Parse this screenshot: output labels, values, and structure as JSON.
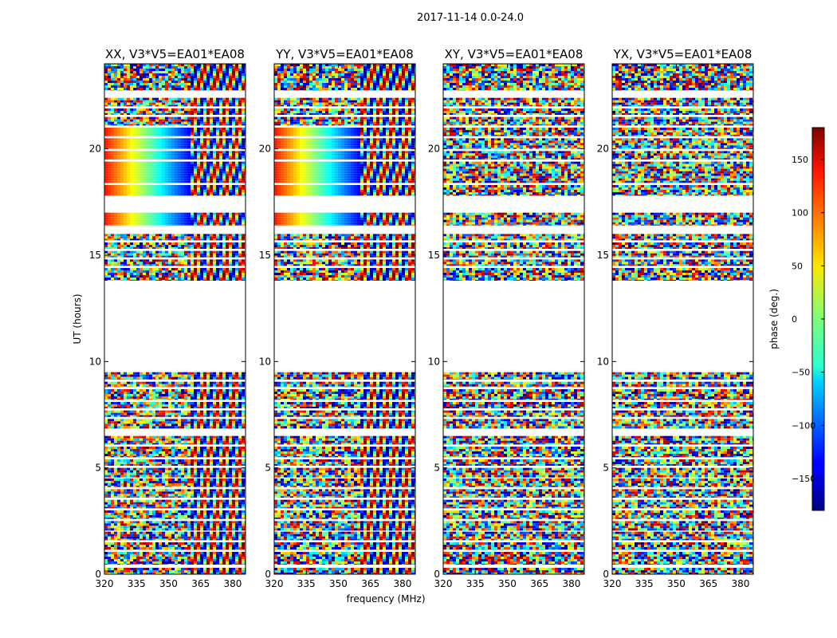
{
  "figure": {
    "suptitle": "2017-11-14 0.0-24.0"
  },
  "chart_data": {
    "type": "heatmap",
    "panels": [
      {
        "title": "XX, V3*V5=EA01*EA08",
        "pol": "XX"
      },
      {
        "title": "YY, V3*V5=EA01*EA08",
        "pol": "YY"
      },
      {
        "title": "XY, V3*V5=EA01*EA08",
        "pol": "XY"
      },
      {
        "title": "YX, V3*V5=EA01*EA08",
        "pol": "YX"
      }
    ],
    "xlabel": "frequency (MHz)",
    "ylabel": "UT (hours)",
    "xlim": [
      320,
      386
    ],
    "ylim": [
      0,
      24
    ],
    "xticks": [
      320,
      335,
      350,
      365,
      380
    ],
    "yticks": [
      0,
      5,
      10,
      15,
      20
    ],
    "colorbar": {
      "label": "phase (deg.)",
      "range": [
        -180,
        180
      ],
      "ticks": [
        150,
        100,
        50,
        0,
        -50,
        -100,
        -150
      ],
      "tick_labels": [
        "150",
        "100",
        "50",
        "0",
        "−50",
        "−100",
        "−150"
      ],
      "colormap": "jet"
    },
    "data_blocks_hours": [
      [
        0.0,
        0.3
      ],
      [
        0.45,
        1.05
      ],
      [
        1.15,
        1.5
      ],
      [
        1.6,
        2.0
      ],
      [
        2.05,
        2.5
      ],
      [
        2.6,
        3.0
      ],
      [
        3.1,
        3.5
      ],
      [
        3.6,
        4.0
      ],
      [
        4.1,
        4.5
      ],
      [
        4.55,
        5.0
      ],
      [
        5.1,
        5.4
      ],
      [
        5.5,
        6.0
      ],
      [
        6.1,
        6.5
      ],
      [
        6.85,
        7.3
      ],
      [
        7.4,
        7.7
      ],
      [
        7.8,
        8.1
      ],
      [
        8.2,
        8.7
      ],
      [
        8.8,
        9.05
      ],
      [
        9.15,
        9.5
      ],
      [
        13.8,
        14.4
      ],
      [
        14.5,
        14.8
      ],
      [
        14.9,
        15.2
      ],
      [
        15.3,
        15.6
      ],
      [
        15.7,
        16.0
      ],
      [
        16.4,
        17.0
      ],
      [
        17.8,
        18.3
      ],
      [
        18.4,
        19.4
      ],
      [
        19.5,
        19.9
      ],
      [
        20.0,
        20.5
      ],
      [
        20.6,
        21.0
      ],
      [
        21.1,
        21.5
      ],
      [
        21.6,
        21.9
      ],
      [
        22.0,
        22.4
      ],
      [
        22.75,
        24.0
      ]
    ]
  }
}
